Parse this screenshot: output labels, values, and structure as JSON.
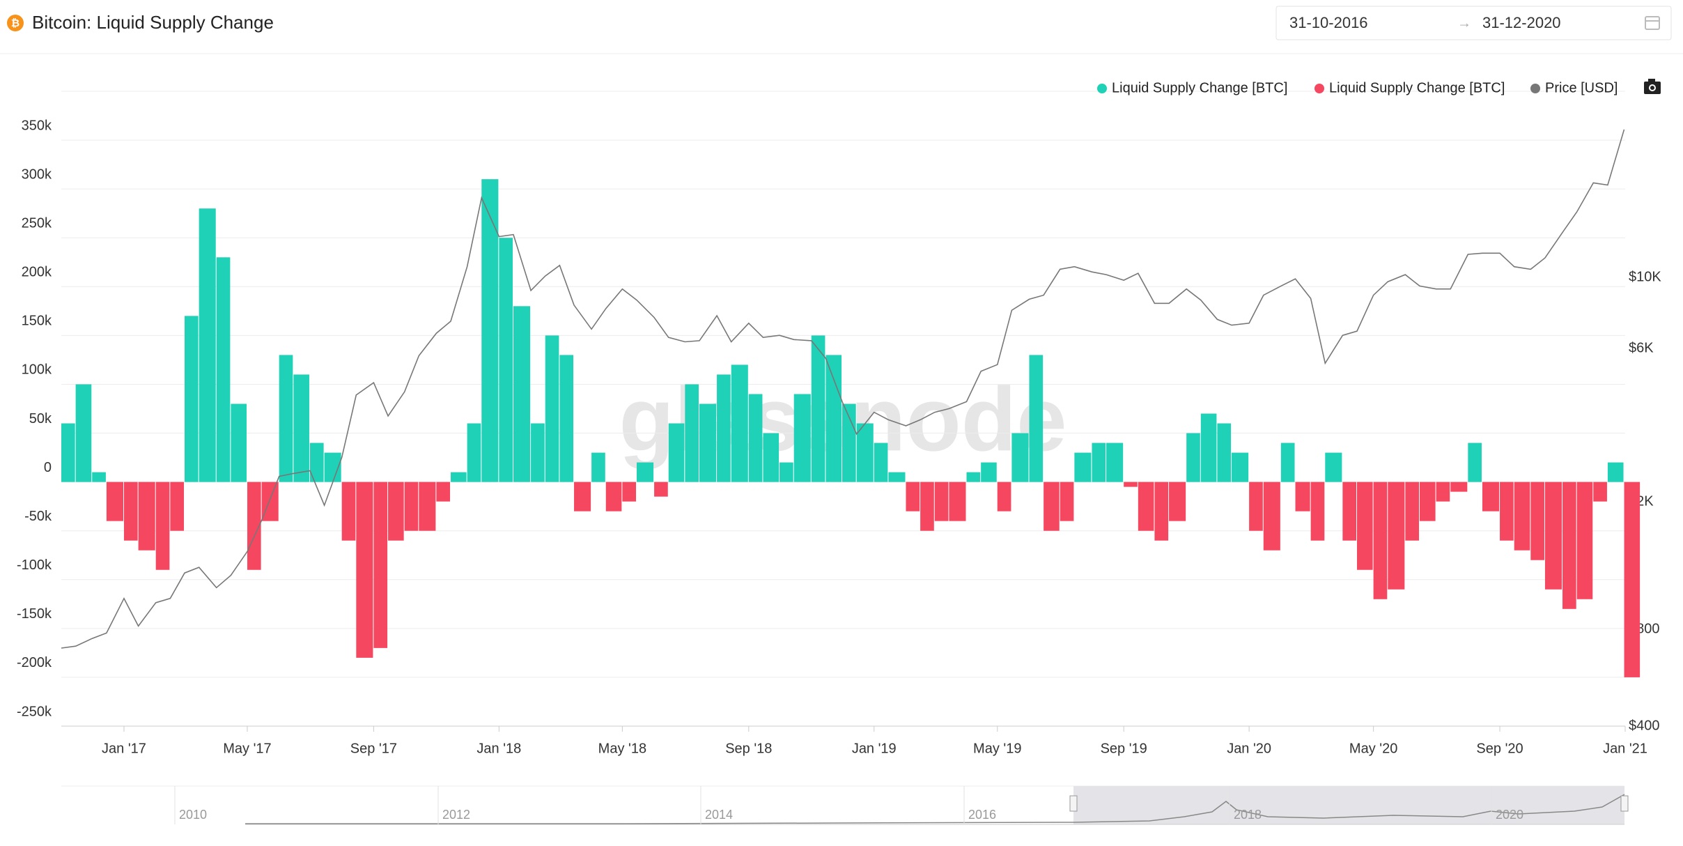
{
  "header": {
    "title": "Bitcoin: Liquid Supply Change",
    "date_from": "31-10-2016",
    "date_to": "31-12-2020"
  },
  "watermark": "glassnode",
  "navigator": {
    "labels": [
      "2010",
      "2012",
      "2014",
      "2016",
      "2018",
      "2020"
    ]
  },
  "chart_data": {
    "type": "bar",
    "grid": true,
    "legend": "top-right",
    "y2scale": "log",
    "x": [
      "2016-11-01",
      "2016-11-15",
      "2016-12-01",
      "2016-12-15",
      "2017-01-01",
      "2017-01-15",
      "2017-02-01",
      "2017-02-15",
      "2017-03-01",
      "2017-03-15",
      "2017-04-01",
      "2017-04-15",
      "2017-05-01",
      "2017-05-15",
      "2017-06-01",
      "2017-06-15",
      "2017-07-01",
      "2017-07-15",
      "2017-08-01",
      "2017-08-15",
      "2017-09-01",
      "2017-09-15",
      "2017-10-01",
      "2017-10-15",
      "2017-11-01",
      "2017-11-15",
      "2017-12-01",
      "2017-12-15",
      "2018-01-01",
      "2018-01-15",
      "2018-02-01",
      "2018-02-15",
      "2018-03-01",
      "2018-03-15",
      "2018-04-01",
      "2018-04-15",
      "2018-05-01",
      "2018-05-15",
      "2018-06-01",
      "2018-06-15",
      "2018-07-01",
      "2018-07-15",
      "2018-08-01",
      "2018-08-15",
      "2018-09-01",
      "2018-09-15",
      "2018-10-01",
      "2018-10-15",
      "2018-11-01",
      "2018-11-15",
      "2018-12-01",
      "2018-12-15",
      "2019-01-01",
      "2019-01-15",
      "2019-02-01",
      "2019-02-15",
      "2019-03-01",
      "2019-03-15",
      "2019-04-01",
      "2019-04-15",
      "2019-05-01",
      "2019-05-15",
      "2019-06-01",
      "2019-06-15",
      "2019-07-01",
      "2019-07-15",
      "2019-08-01",
      "2019-08-15",
      "2019-09-01",
      "2019-09-15",
      "2019-10-01",
      "2019-10-15",
      "2019-11-01",
      "2019-11-15",
      "2019-12-01",
      "2019-12-15",
      "2020-01-01",
      "2020-01-15",
      "2020-02-01",
      "2020-02-15",
      "2020-03-01",
      "2020-03-15",
      "2020-04-01",
      "2020-04-15",
      "2020-05-01",
      "2020-05-15",
      "2020-06-01",
      "2020-06-15",
      "2020-07-01",
      "2020-07-15",
      "2020-08-01",
      "2020-08-15",
      "2020-09-01",
      "2020-09-15",
      "2020-10-01",
      "2020-10-15",
      "2020-11-01",
      "2020-11-15",
      "2020-12-01",
      "2020-12-15",
      "2020-12-31"
    ],
    "series": [
      {
        "name": "Liquid Supply Change [BTC]",
        "color": "#1fd1b6",
        "values": [
          60000,
          100000,
          10000,
          null,
          null,
          null,
          null,
          null,
          170000,
          280000,
          230000,
          80000,
          null,
          null,
          130000,
          110000,
          40000,
          30000,
          null,
          null,
          null,
          null,
          null,
          null,
          null,
          10000,
          60000,
          310000,
          250000,
          180000,
          60000,
          150000,
          130000,
          null,
          30000,
          null,
          null,
          20000,
          null,
          60000,
          100000,
          80000,
          110000,
          120000,
          90000,
          50000,
          20000,
          90000,
          150000,
          130000,
          80000,
          60000,
          40000,
          10000,
          null,
          null,
          null,
          null,
          10000,
          20000,
          null,
          50000,
          130000,
          null,
          null,
          30000,
          40000,
          40000,
          null,
          null,
          null,
          null,
          50000,
          70000,
          60000,
          30000,
          null,
          null,
          40000,
          null,
          null,
          30000,
          null,
          null,
          null,
          null,
          null,
          null,
          null,
          null,
          40000,
          null,
          null,
          null,
          null,
          null,
          null,
          null,
          null,
          20000,
          null
        ]
      },
      {
        "name": "Liquid Supply Change [BTC]",
        "color": "#f5475f",
        "values": [
          null,
          null,
          null,
          -40000,
          -60000,
          -70000,
          -90000,
          -50000,
          null,
          null,
          null,
          null,
          -90000,
          -40000,
          null,
          null,
          null,
          null,
          -60000,
          -180000,
          -170000,
          -60000,
          -50000,
          -50000,
          -20000,
          null,
          null,
          null,
          null,
          null,
          null,
          null,
          null,
          -30000,
          null,
          -30000,
          -20000,
          null,
          -15000,
          null,
          null,
          null,
          null,
          null,
          null,
          null,
          null,
          null,
          null,
          null,
          null,
          null,
          null,
          null,
          -30000,
          -50000,
          -40000,
          -40000,
          null,
          null,
          -30000,
          null,
          null,
          -50000,
          -40000,
          null,
          null,
          null,
          -5000,
          -50000,
          -60000,
          -40000,
          null,
          null,
          null,
          null,
          -50000,
          -70000,
          null,
          -30000,
          -60000,
          null,
          -60000,
          -90000,
          -120000,
          -110000,
          -60000,
          -40000,
          -20000,
          -10000,
          null,
          -30000,
          -60000,
          -70000,
          -80000,
          -110000,
          -130000,
          -120000,
          -20000,
          null,
          -200000
        ]
      },
      {
        "name": "Price [USD]",
        "color": "#777777",
        "axis": "y2",
        "values": [
          700,
          710,
          750,
          780,
          1000,
          820,
          970,
          1000,
          1200,
          1250,
          1080,
          1180,
          1400,
          1750,
          2400,
          2450,
          2500,
          1950,
          2750,
          4300,
          4700,
          3700,
          4400,
          5700,
          6700,
          7300,
          10800,
          17700,
          13400,
          13600,
          9100,
          10100,
          10900,
          8200,
          6900,
          8000,
          9200,
          8500,
          7500,
          6500,
          6300,
          6350,
          7600,
          6300,
          7200,
          6500,
          6600,
          6400,
          6350,
          5600,
          4100,
          3250,
          3800,
          3600,
          3450,
          3600,
          3800,
          3900,
          4100,
          5100,
          5350,
          7900,
          8550,
          8800,
          10600,
          10800,
          10400,
          10200,
          9800,
          10300,
          8300,
          8300,
          9200,
          8500,
          7400,
          7100,
          7200,
          8800,
          9400,
          9900,
          8600,
          5400,
          6600,
          6800,
          8800,
          9700,
          10200,
          9400,
          9200,
          9200,
          11800,
          11900,
          11900,
          10800,
          10600,
          11500,
          13800,
          16000,
          19700,
          19400,
          28900
        ]
      }
    ],
    "xlim": [
      "2016-11-01",
      "2021-01-01"
    ],
    "xticks": [
      {
        "value": "2017-01-01",
        "label": "Jan '17"
      },
      {
        "value": "2017-05-01",
        "label": "May '17"
      },
      {
        "value": "2017-09-01",
        "label": "Sep '17"
      },
      {
        "value": "2018-01-01",
        "label": "Jan '18"
      },
      {
        "value": "2018-05-01",
        "label": "May '18"
      },
      {
        "value": "2018-09-01",
        "label": "Sep '18"
      },
      {
        "value": "2019-01-01",
        "label": "Jan '19"
      },
      {
        "value": "2019-05-01",
        "label": "May '19"
      },
      {
        "value": "2019-09-01",
        "label": "Sep '19"
      },
      {
        "value": "2020-01-01",
        "label": "Jan '20"
      },
      {
        "value": "2020-05-01",
        "label": "May '20"
      },
      {
        "value": "2020-09-01",
        "label": "Sep '20"
      },
      {
        "value": "2021-01-01",
        "label": "Jan '21"
      }
    ],
    "ylim": [
      -250000,
      400000
    ],
    "yticks": [
      {
        "value": -250000,
        "label": "-250k"
      },
      {
        "value": -200000,
        "label": "-200k"
      },
      {
        "value": -150000,
        "label": "-150k"
      },
      {
        "value": -100000,
        "label": "-100k"
      },
      {
        "value": -50000,
        "label": "-50k"
      },
      0,
      {
        "value": 50000,
        "label": "50k"
      },
      {
        "value": 100000,
        "label": "100k"
      },
      {
        "value": 150000,
        "label": "150k"
      },
      {
        "value": 200000,
        "label": "200k"
      },
      {
        "value": 250000,
        "label": "250k"
      },
      {
        "value": 300000,
        "label": "300k"
      },
      {
        "value": 350000,
        "label": "350k"
      }
    ],
    "y2lim": [
      400,
      38000
    ],
    "y2ticks": [
      {
        "value": 400,
        "label": "$400"
      },
      {
        "value": 800,
        "label": "$800"
      },
      {
        "value": 2000,
        "label": "$2K"
      },
      {
        "value": 6000,
        "label": "$6K"
      },
      {
        "value": 10000,
        "label": "$10K"
      }
    ]
  }
}
